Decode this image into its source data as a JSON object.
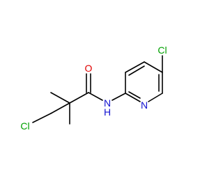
{
  "atoms": [
    {
      "label": "Cl"
    },
    {
      "label": "O"
    },
    {
      "label": "N"
    },
    {
      "label": "H"
    },
    {
      "label": "N"
    },
    {
      "label": "Cl"
    }
  ]
}
